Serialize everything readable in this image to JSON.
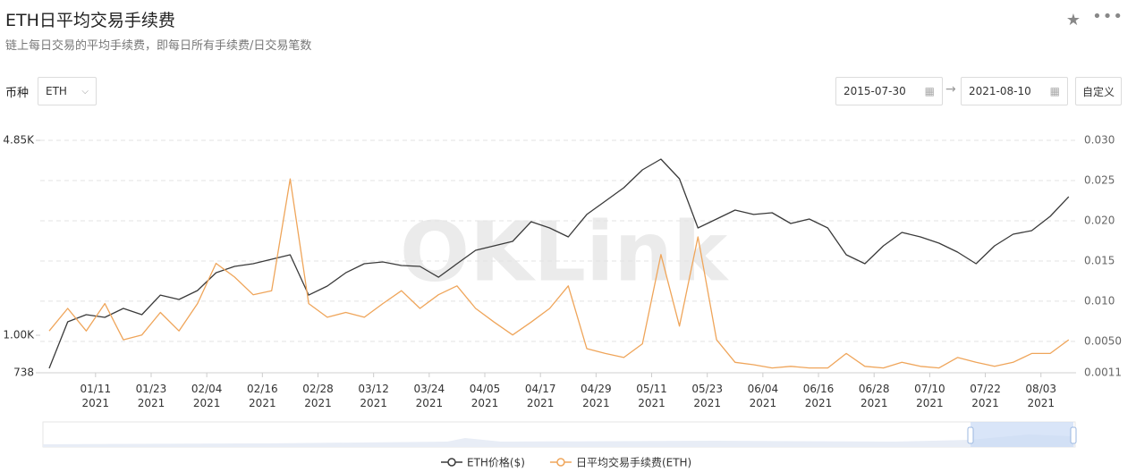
{
  "chart_data": {
    "type": "line",
    "title": "ETH日平均交易手续费",
    "subtitle": "链上每日交易的平均手续费，即每日所有手续费/日交易笔数",
    "x": [
      "2021-01-01",
      "2021-01-05",
      "2021-01-09",
      "2021-01-13",
      "2021-01-17",
      "2021-01-21",
      "2021-01-25",
      "2021-01-29",
      "2021-02-02",
      "2021-02-06",
      "2021-02-10",
      "2021-02-14",
      "2021-02-18",
      "2021-02-22",
      "2021-02-26",
      "2021-03-02",
      "2021-03-06",
      "2021-03-10",
      "2021-03-14",
      "2021-03-18",
      "2021-03-22",
      "2021-03-26",
      "2021-03-30",
      "2021-04-03",
      "2021-04-07",
      "2021-04-11",
      "2021-04-15",
      "2021-04-19",
      "2021-04-23",
      "2021-04-27",
      "2021-05-01",
      "2021-05-05",
      "2021-05-09",
      "2021-05-13",
      "2021-05-17",
      "2021-05-21",
      "2021-05-25",
      "2021-05-29",
      "2021-06-02",
      "2021-06-06",
      "2021-06-10",
      "2021-06-14",
      "2021-06-18",
      "2021-06-22",
      "2021-06-26",
      "2021-06-30",
      "2021-07-04",
      "2021-07-08",
      "2021-07-12",
      "2021-07-16",
      "2021-07-20",
      "2021-07-24",
      "2021-07-28",
      "2021-08-01",
      "2021-08-05",
      "2021-08-09"
    ],
    "series": [
      {
        "name": "ETH价格($)",
        "color": "#3a3a3a",
        "axis": "y",
        "values": [
          765,
          1115,
          1182,
          1156,
          1243,
          1182,
          1385,
          1336,
          1437,
          1660,
          1747,
          1785,
          1851,
          1920,
          1385,
          1490,
          1660,
          1785,
          1811,
          1760,
          1747,
          1601,
          1785,
          1990,
          2064,
          2140,
          2509,
          2385,
          2218,
          2660,
          2965,
          3303,
          3818,
          4166,
          3552,
          2385,
          2565,
          2757,
          2660,
          2698,
          2473,
          2565,
          2385,
          1920,
          1785,
          2064,
          2300,
          2218,
          2109,
          1962,
          1785,
          2064,
          2267,
          2334,
          2620,
          3072
        ]
      },
      {
        "name": "日平均交易手续费(ETH)",
        "color": "#efa55a",
        "axis": "y2",
        "values": [
          0.0063,
          0.0091,
          0.0063,
          0.0097,
          0.0052,
          0.0058,
          0.0086,
          0.0063,
          0.0097,
          0.0147,
          0.013,
          0.0108,
          0.0113,
          0.0252,
          0.0097,
          0.008,
          0.0086,
          0.008,
          0.0097,
          0.0113,
          0.0091,
          0.0108,
          0.0119,
          0.0091,
          0.0074,
          0.0058,
          0.0074,
          0.0091,
          0.0119,
          0.0041,
          0.0035,
          0.003,
          0.0047,
          0.0158,
          0.0069,
          0.018,
          0.0052,
          0.0024,
          0.0021,
          0.0017,
          0.0019,
          0.0017,
          0.0017,
          0.0035,
          0.0019,
          0.0017,
          0.0024,
          0.0019,
          0.0017,
          0.003,
          0.0024,
          0.0019,
          0.0024,
          0.0035,
          0.0035,
          0.0052
        ]
      }
    ],
    "xlim": [
      "2021-01-01",
      "2021-08-10"
    ],
    "xticks": [
      {
        "value": "2021-01-11",
        "label": "01/11\n2021"
      },
      {
        "value": "2021-01-23",
        "label": "01/23\n2021"
      },
      {
        "value": "2021-02-04",
        "label": "02/04\n2021"
      },
      {
        "value": "2021-02-16",
        "label": "02/16\n2021"
      },
      {
        "value": "2021-02-28",
        "label": "02/28\n2021"
      },
      {
        "value": "2021-03-12",
        "label": "03/12\n2021"
      },
      {
        "value": "2021-03-24",
        "label": "03/24\n2021"
      },
      {
        "value": "2021-04-05",
        "label": "04/05\n2021"
      },
      {
        "value": "2021-04-17",
        "label": "04/17\n2021"
      },
      {
        "value": "2021-04-29",
        "label": "04/29\n2021"
      },
      {
        "value": "2021-05-11",
        "label": "05/11\n2021"
      },
      {
        "value": "2021-05-23",
        "label": "05/23\n2021"
      },
      {
        "value": "2021-06-04",
        "label": "06/04\n2021"
      },
      {
        "value": "2021-06-16",
        "label": "06/16\n2021"
      },
      {
        "value": "2021-06-28",
        "label": "06/28\n2021"
      },
      {
        "value": "2021-07-10",
        "label": "07/10\n2021"
      },
      {
        "value": "2021-07-22",
        "label": "07/22\n2021"
      },
      {
        "value": "2021-08-03",
        "label": "08/03\n2021"
      }
    ],
    "ylim": [
      738,
      4850
    ],
    "yscale": "log",
    "yticks": [
      738,
      {
        "value": 1000,
        "label": "1.00K"
      },
      {
        "value": 4850,
        "label": "4.85K"
      }
    ],
    "y2lim": [
      0.0011,
      0.03
    ],
    "y2ticks": [
      0.0011,
      {
        "value": 0.005,
        "label": "0.0050"
      },
      {
        "value": 0.01,
        "label": "0.010"
      },
      0.015,
      {
        "value": 0.02,
        "label": "0.020"
      },
      0.025,
      {
        "value": 0.03,
        "label": "0.030"
      }
    ],
    "grid": true,
    "legend": "bottom"
  },
  "controls": {
    "currency_label": "币种",
    "currency": "ETH",
    "start_date": "2015-07-30",
    "end_date": "2021-08-10",
    "custom_button": "自定义"
  },
  "watermark": "OKLink"
}
